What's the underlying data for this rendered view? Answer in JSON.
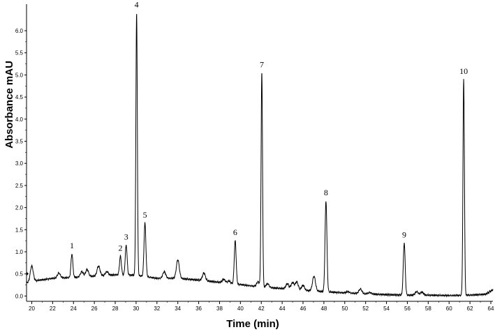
{
  "chart_data": {
    "type": "line",
    "title": "",
    "xlabel": "Time (min)",
    "ylabel": "Absorbance  mAU",
    "xlim": [
      19.5,
      64.2
    ],
    "ylim": [
      -0.12,
      6.6
    ],
    "xticks": [
      {
        "v": 20,
        "label": "20"
      },
      {
        "v": 22,
        "label": "22"
      },
      {
        "v": 24,
        "label": "24"
      },
      {
        "v": 26,
        "label": "26"
      },
      {
        "v": 28,
        "label": "28"
      },
      {
        "v": 30,
        "label": "30"
      },
      {
        "v": 32,
        "label": "32"
      },
      {
        "v": 34,
        "label": "34"
      },
      {
        "v": 36,
        "label": "36"
      },
      {
        "v": 38,
        "label": "38"
      },
      {
        "v": 40,
        "label": "40"
      },
      {
        "v": 42,
        "label": "42"
      },
      {
        "v": 44,
        "label": "44"
      },
      {
        "v": 46,
        "label": "46"
      },
      {
        "v": 48,
        "label": "48"
      },
      {
        "v": 50,
        "label": "50"
      },
      {
        "v": 52,
        "label": "52"
      },
      {
        "v": 54,
        "label": "54"
      },
      {
        "v": 56,
        "label": "56"
      },
      {
        "v": 58,
        "label": "58"
      },
      {
        "v": 60,
        "label": "60"
      },
      {
        "v": 62,
        "label": "62"
      },
      {
        "v": 64,
        "label": "64"
      }
    ],
    "yticks": [
      {
        "v": 0.0,
        "label": "0.0"
      },
      {
        "v": 0.5,
        "label": "0.5"
      },
      {
        "v": 1.0,
        "label": "1.0"
      },
      {
        "v": 1.5,
        "label": "1.5"
      },
      {
        "v": 2.0,
        "label": "2.0"
      },
      {
        "v": 2.5,
        "label": "2.5"
      },
      {
        "v": 3.0,
        "label": "3.0"
      },
      {
        "v": 3.5,
        "label": "3.5"
      },
      {
        "v": 4.0,
        "label": "4.0"
      },
      {
        "v": 4.5,
        "label": "4.5"
      },
      {
        "v": 5.0,
        "label": "5.0"
      },
      {
        "v": 5.5,
        "label": "5.5"
      },
      {
        "v": 6.0,
        "label": "6.0"
      }
    ],
    "grid": false,
    "baseline": [
      [
        19.5,
        0.3
      ],
      [
        20.5,
        0.35
      ],
      [
        22,
        0.4
      ],
      [
        24,
        0.42
      ],
      [
        26,
        0.45
      ],
      [
        28,
        0.48
      ],
      [
        30,
        0.47
      ],
      [
        32,
        0.4
      ],
      [
        34,
        0.4
      ],
      [
        36,
        0.36
      ],
      [
        38,
        0.31
      ],
      [
        40,
        0.26
      ],
      [
        42,
        0.2
      ],
      [
        44,
        0.17
      ],
      [
        46,
        0.13
      ],
      [
        48,
        0.1
      ],
      [
        50,
        0.07
      ],
      [
        52,
        0.05
      ],
      [
        54,
        0.03
      ],
      [
        56,
        0.02
      ],
      [
        58,
        0.02
      ],
      [
        60,
        0.01
      ],
      [
        62,
        0.02
      ],
      [
        63.5,
        0.04
      ],
      [
        64.2,
        0.14
      ]
    ],
    "peaks": [
      {
        "label": "1",
        "t": 23.85,
        "h": 0.95
      },
      {
        "label": "2",
        "t": 28.5,
        "h": 0.9
      },
      {
        "label": "3",
        "t": 29.05,
        "h": 1.15
      },
      {
        "label": "4",
        "t": 30.05,
        "h": 6.4
      },
      {
        "label": "5",
        "t": 30.85,
        "h": 1.65
      },
      {
        "label": "6",
        "t": 39.5,
        "h": 1.25
      },
      {
        "label": "7",
        "t": 42.05,
        "h": 5.05
      },
      {
        "label": "8",
        "t": 48.2,
        "h": 2.15
      },
      {
        "label": "9",
        "t": 55.7,
        "h": 1.2
      },
      {
        "label": "10",
        "t": 61.4,
        "h": 4.9
      }
    ],
    "minor_peaks": [
      {
        "t": 20.0,
        "h": 0.68
      },
      {
        "t": 22.6,
        "h": 0.52
      },
      {
        "t": 24.8,
        "h": 0.55
      },
      {
        "t": 25.3,
        "h": 0.6
      },
      {
        "t": 26.4,
        "h": 0.68
      },
      {
        "t": 27.2,
        "h": 0.55
      },
      {
        "t": 32.7,
        "h": 0.55
      },
      {
        "t": 34.0,
        "h": 0.82
      },
      {
        "t": 36.5,
        "h": 0.52
      },
      {
        "t": 38.4,
        "h": 0.38
      },
      {
        "t": 38.9,
        "h": 0.34
      },
      {
        "t": 41.7,
        "h": 0.32
      },
      {
        "t": 42.6,
        "h": 0.28
      },
      {
        "t": 44.5,
        "h": 0.28
      },
      {
        "t": 45.0,
        "h": 0.3
      },
      {
        "t": 45.4,
        "h": 0.32
      },
      {
        "t": 46.0,
        "h": 0.24
      },
      {
        "t": 47.05,
        "h": 0.45
      },
      {
        "t": 50.3,
        "h": 0.1
      },
      {
        "t": 51.5,
        "h": 0.16
      },
      {
        "t": 52.4,
        "h": 0.08
      },
      {
        "t": 56.9,
        "h": 0.1
      },
      {
        "t": 57.4,
        "h": 0.09
      }
    ]
  }
}
